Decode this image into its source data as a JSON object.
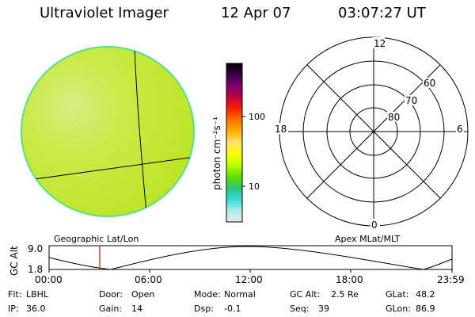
{
  "header": {
    "title": "Ultraviolet Imager",
    "date": "12 Apr 07",
    "time": "03:07:27 UT"
  },
  "colorbar": {
    "unit_label": "photon cm⁻²s⁻¹",
    "tick_100": "100",
    "tick_10": "10",
    "stops": [
      "#e8e8e8",
      "#a9f0e8",
      "#36d8d8",
      "#28c870",
      "#60e000",
      "#b8ff00",
      "#ffff00",
      "#ffe070",
      "#ffb000",
      "#ff7000",
      "#ff2000",
      "#c0003c",
      "#800070",
      "#3a004a",
      "#000000"
    ]
  },
  "globe": {
    "label": "Geographic Lat/Lon",
    "fill_color": "#d6fa3c",
    "edge_color": "#55e08a"
  },
  "polar": {
    "label": "Apex MLat/MLT",
    "mlt_12": "12",
    "mlt_18": "18",
    "mlt_6": "6",
    "mlt_0": "0",
    "lat_60": "60",
    "lat_70": "70",
    "lat_80": "80"
  },
  "altitude_plot": {
    "axis_label": "GC Alt",
    "y_max": "9.0",
    "y_min": "1.8",
    "x_ticks": [
      "00:00",
      "06:00",
      "12:00",
      "18:00",
      "23:59"
    ],
    "marker_color": "#ff0000"
  },
  "info": {
    "filter_label": "Flt:",
    "filter_value": "LBHL",
    "door_label": "Door:",
    "door_value": "Open",
    "mode_label": "Mode:",
    "mode_value": "Normal",
    "gcalt_label": "GC Alt:",
    "gcalt_value": "2.5 Re",
    "glat_label": "GLat:",
    "glat_value": "48.2",
    "ip_label": "IP:",
    "ip_value": "36.0",
    "gain_label": "Gain:",
    "gain_value": "14",
    "dsp_label": "Dsp:",
    "dsp_value": "-0.1",
    "seq_label": "Seq:",
    "seq_value": "39",
    "glon_label": "GLon:",
    "glon_value": "86.9"
  }
}
